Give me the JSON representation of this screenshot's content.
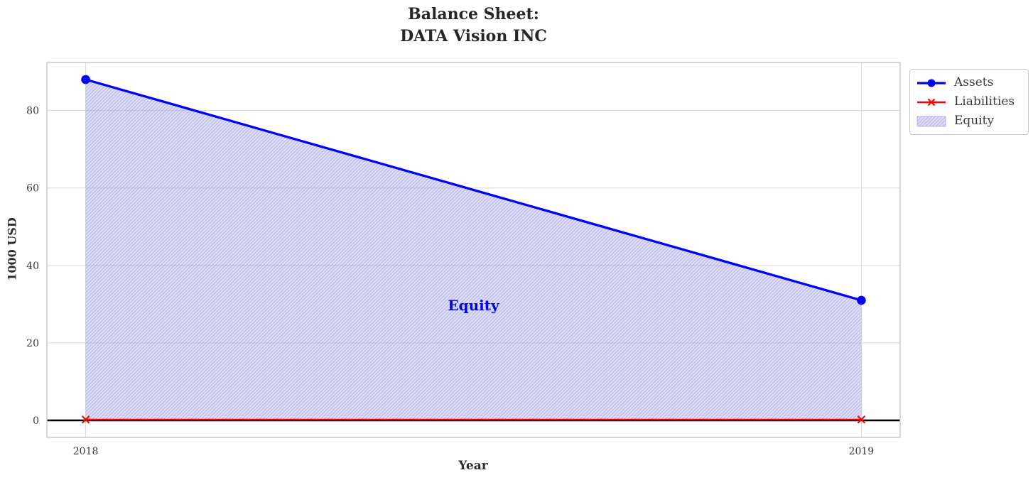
{
  "header": {
    "title_line1": "Balance Sheet:",
    "title_line2": "DATA Vision INC"
  },
  "chart_data": {
    "type": "area",
    "title": "Balance Sheet:\nDATA Vision INC",
    "xlabel": "Year",
    "ylabel": "1000 USD",
    "x": [
      2018,
      2019
    ],
    "series": [
      {
        "name": "Assets",
        "values": [
          88,
          31
        ],
        "color": "#0000ff",
        "marker": "circle",
        "line_width": 3.3
      },
      {
        "name": "Liabilities",
        "values": [
          0.2,
          0.2
        ],
        "color": "#ff0000",
        "marker": "x",
        "line_width": 2.4
      }
    ],
    "area": {
      "label": "Equity",
      "between": [
        "Assets",
        "Liabilities"
      ],
      "fill_color": "#8888dd",
      "fill_opacity": 0.28,
      "hatch": "//",
      "hatch_color": "#9a9ae2"
    },
    "annotation": {
      "text": "Equity",
      "color": "#0000ee",
      "x": 2018.5,
      "y": 29.7
    },
    "xticks": [
      2018,
      2019
    ],
    "yticks": [
      0,
      20,
      40,
      60,
      80
    ],
    "xlim": [
      2017.95,
      2019.05
    ],
    "ylim": [
      -4.4,
      92.4
    ],
    "grid": true,
    "grid_color": "#d9d9d9",
    "axis_border_color": "#cccccc",
    "tick_label_color": "#3a3a3a",
    "zero_line_color": "#000000",
    "legend_position": "outside-upper-right"
  },
  "legend": {
    "items": [
      {
        "label": "Assets",
        "swatch": "line-circle",
        "color": "#0000ff"
      },
      {
        "label": "Liabilities",
        "swatch": "line-x",
        "color": "#ff0000"
      },
      {
        "label": "Equity",
        "swatch": "hatch-patch",
        "color": "#9a9ae2"
      }
    ]
  }
}
